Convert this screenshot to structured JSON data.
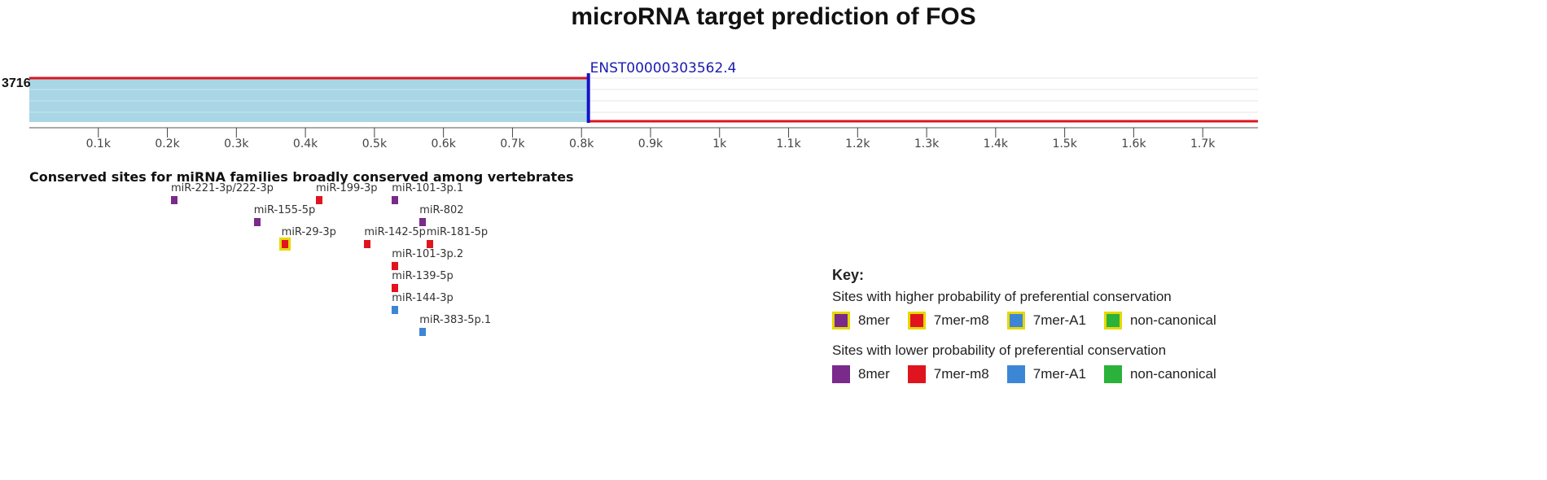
{
  "title": "microRNA target prediction of FOS",
  "track": {
    "utr_length_label": "3716",
    "transcript_id": "ENST00000303562.4",
    "transcript_end_k": 0.81,
    "axis_max_k": 1.78,
    "axis_ticks": [
      {
        "value": 0.1,
        "label": "0.1k"
      },
      {
        "value": 0.2,
        "label": "0.2k"
      },
      {
        "value": 0.3,
        "label": "0.3k"
      },
      {
        "value": 0.4,
        "label": "0.4k"
      },
      {
        "value": 0.5,
        "label": "0.5k"
      },
      {
        "value": 0.6,
        "label": "0.6k"
      },
      {
        "value": 0.7,
        "label": "0.7k"
      },
      {
        "value": 0.8,
        "label": "0.8k"
      },
      {
        "value": 0.9,
        "label": "0.9k"
      },
      {
        "value": 1.0,
        "label": "1k"
      },
      {
        "value": 1.1,
        "label": "1.1k"
      },
      {
        "value": 1.2,
        "label": "1.2k"
      },
      {
        "value": 1.3,
        "label": "1.3k"
      },
      {
        "value": 1.4,
        "label": "1.4k"
      },
      {
        "value": 1.5,
        "label": "1.5k"
      },
      {
        "value": 1.6,
        "label": "1.6k"
      },
      {
        "value": 1.7,
        "label": "1.7k"
      }
    ],
    "colors": {
      "fill": "#a9d6e5",
      "line": "#e0141e",
      "marker": "#1414c8"
    }
  },
  "sites_section": {
    "title": "Conserved sites for miRNA families broadly conserved among vertebrates",
    "sites": [
      {
        "name": "miR-221-3p/222-3p",
        "position_k": 0.21,
        "type": "8mer",
        "conservation": "lower",
        "row": 0
      },
      {
        "name": "miR-199-3p",
        "position_k": 0.42,
        "type": "7mer-m8",
        "conservation": "lower",
        "row": 0
      },
      {
        "name": "miR-101-3p.1",
        "position_k": 0.53,
        "type": "8mer",
        "conservation": "lower",
        "row": 0
      },
      {
        "name": "miR-155-5p",
        "position_k": 0.33,
        "type": "8mer",
        "conservation": "lower",
        "row": 1
      },
      {
        "name": "miR-802",
        "position_k": 0.57,
        "type": "8mer",
        "conservation": "lower",
        "row": 1
      },
      {
        "name": "miR-29-3p",
        "position_k": 0.37,
        "type": "7mer-m8",
        "conservation": "higher",
        "row": 2
      },
      {
        "name": "miR-142-5p",
        "position_k": 0.49,
        "type": "7mer-m8",
        "conservation": "lower",
        "row": 2
      },
      {
        "name": "miR-181-5p",
        "position_k": 0.58,
        "type": "7mer-m8",
        "conservation": "lower",
        "row": 2
      },
      {
        "name": "miR-101-3p.2",
        "position_k": 0.53,
        "type": "7mer-m8",
        "conservation": "lower",
        "row": 3
      },
      {
        "name": "miR-139-5p",
        "position_k": 0.53,
        "type": "7mer-m8",
        "conservation": "lower",
        "row": 4
      },
      {
        "name": "miR-144-3p",
        "position_k": 0.53,
        "type": "7mer-A1",
        "conservation": "lower",
        "row": 5
      },
      {
        "name": "miR-383-5p.1",
        "position_k": 0.57,
        "type": "7mer-A1",
        "conservation": "lower",
        "row": 6
      }
    ]
  },
  "key": {
    "title": "Key:",
    "higher_heading": "Sites with higher probability of preferential conservation",
    "lower_heading": "Sites with lower probability of preferential conservation",
    "types": [
      {
        "label": "8mer",
        "color": "#7a2a8a"
      },
      {
        "label": "7mer-m8",
        "color": "#e0141e"
      },
      {
        "label": "7mer-A1",
        "color": "#3d86d6"
      },
      {
        "label": "non-canonical",
        "color": "#2ab23a"
      }
    ]
  }
}
